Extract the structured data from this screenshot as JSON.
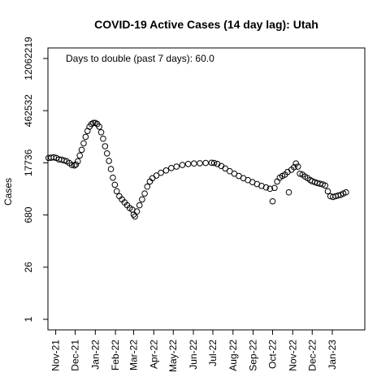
{
  "chart_data": {
    "type": "scatter",
    "title": "COVID-19 Active Cases (14 day lag): Utah",
    "ylabel": "Cases",
    "xlabel": "",
    "annotation": "Days to double (past 7 days): 60.0",
    "y_scale": "log",
    "ylim": [
      1,
      12062219
    ],
    "y_ticks": [
      {
        "value": 1,
        "label": "1"
      },
      {
        "value": 26,
        "label": "26"
      },
      {
        "value": 680,
        "label": "680"
      },
      {
        "value": 17736,
        "label": "17736"
      },
      {
        "value": 462532,
        "label": "462532"
      },
      {
        "value": 12062219,
        "label": "12062219"
      }
    ],
    "x_range": [
      "2021-10-20",
      "2023-02-20"
    ],
    "x_ticks": [
      {
        "date": "2021-11-01",
        "label": "Nov-21"
      },
      {
        "date": "2021-12-01",
        "label": "Dec-21"
      },
      {
        "date": "2022-01-01",
        "label": "Jan-22"
      },
      {
        "date": "2022-02-01",
        "label": "Feb-22"
      },
      {
        "date": "2022-03-01",
        "label": "Mar-22"
      },
      {
        "date": "2022-04-01",
        "label": "Apr-22"
      },
      {
        "date": "2022-05-01",
        "label": "May-22"
      },
      {
        "date": "2022-06-01",
        "label": "Jun-22"
      },
      {
        "date": "2022-07-01",
        "label": "Jul-22"
      },
      {
        "date": "2022-08-01",
        "label": "Aug-22"
      },
      {
        "date": "2022-09-01",
        "label": "Sep-22"
      },
      {
        "date": "2022-10-01",
        "label": "Oct-22"
      },
      {
        "date": "2022-11-01",
        "label": "Nov-22"
      },
      {
        "date": "2022-12-01",
        "label": "Dec-22"
      },
      {
        "date": "2023-01-01",
        "label": "Jan-23"
      }
    ],
    "series": [
      {
        "marker": "open-circle",
        "points": [
          [
            "2021-10-21",
            24000
          ],
          [
            "2021-10-25",
            24500
          ],
          [
            "2021-10-29",
            25000
          ],
          [
            "2021-11-02",
            24000
          ],
          [
            "2021-11-06",
            22000
          ],
          [
            "2021-11-10",
            21500
          ],
          [
            "2021-11-14",
            20500
          ],
          [
            "2021-11-18",
            19500
          ],
          [
            "2021-11-22",
            17500
          ],
          [
            "2021-11-26",
            15500
          ],
          [
            "2021-11-30",
            15000
          ],
          [
            "2021-12-02",
            16000
          ],
          [
            "2021-12-05",
            19500
          ],
          [
            "2021-12-08",
            28000
          ],
          [
            "2021-12-11",
            40000
          ],
          [
            "2021-12-14",
            60000
          ],
          [
            "2021-12-17",
            90000
          ],
          [
            "2021-12-20",
            130000
          ],
          [
            "2021-12-23",
            170000
          ],
          [
            "2021-12-26",
            200000
          ],
          [
            "2021-12-29",
            215000
          ],
          [
            "2022-01-01",
            215000
          ],
          [
            "2022-01-04",
            200000
          ],
          [
            "2022-01-07",
            170000
          ],
          [
            "2022-01-10",
            120000
          ],
          [
            "2022-01-13",
            80000
          ],
          [
            "2022-01-16",
            50000
          ],
          [
            "2022-01-19",
            32000
          ],
          [
            "2022-01-22",
            20000
          ],
          [
            "2022-01-25",
            12000
          ],
          [
            "2022-01-28",
            7000
          ],
          [
            "2022-01-31",
            4500
          ],
          [
            "2022-02-03",
            3000
          ],
          [
            "2022-02-07",
            2200
          ],
          [
            "2022-02-11",
            1800
          ],
          [
            "2022-02-15",
            1500
          ],
          [
            "2022-02-19",
            1250
          ],
          [
            "2022-02-23",
            1050
          ],
          [
            "2022-02-27",
            950
          ],
          [
            "2022-03-01",
            700
          ],
          [
            "2022-03-03",
            620
          ],
          [
            "2022-03-06",
            850
          ],
          [
            "2022-03-10",
            1250
          ],
          [
            "2022-03-14",
            1800
          ],
          [
            "2022-03-18",
            2600
          ],
          [
            "2022-03-22",
            4000
          ],
          [
            "2022-03-26",
            5500
          ],
          [
            "2022-03-30",
            6800
          ],
          [
            "2022-04-05",
            8000
          ],
          [
            "2022-04-12",
            9500
          ],
          [
            "2022-04-20",
            11000
          ],
          [
            "2022-04-28",
            12800
          ],
          [
            "2022-05-06",
            14000
          ],
          [
            "2022-05-15",
            15500
          ],
          [
            "2022-05-24",
            16500
          ],
          [
            "2022-06-02",
            17000
          ],
          [
            "2022-06-11",
            17300
          ],
          [
            "2022-06-20",
            17600
          ],
          [
            "2022-06-29",
            17800
          ],
          [
            "2022-07-03",
            17600
          ],
          [
            "2022-07-08",
            16500
          ],
          [
            "2022-07-14",
            14500
          ],
          [
            "2022-07-20",
            12500
          ],
          [
            "2022-07-27",
            10500
          ],
          [
            "2022-08-03",
            9000
          ],
          [
            "2022-08-10",
            7800
          ],
          [
            "2022-08-17",
            6800
          ],
          [
            "2022-08-24",
            6000
          ],
          [
            "2022-08-31",
            5300
          ],
          [
            "2022-09-07",
            4700
          ],
          [
            "2022-09-14",
            4200
          ],
          [
            "2022-09-21",
            3800
          ],
          [
            "2022-09-27",
            3500
          ],
          [
            "2022-10-01",
            1600
          ],
          [
            "2022-10-04",
            3700
          ],
          [
            "2022-10-08",
            5500
          ],
          [
            "2022-10-12",
            7000
          ],
          [
            "2022-10-16",
            7800
          ],
          [
            "2022-10-20",
            8500
          ],
          [
            "2022-10-24",
            10000
          ],
          [
            "2022-10-26",
            2800
          ],
          [
            "2022-10-30",
            11500
          ],
          [
            "2022-11-03",
            13500
          ],
          [
            "2022-11-06",
            17000
          ],
          [
            "2022-11-09",
            14000
          ],
          [
            "2022-11-12",
            9000
          ],
          [
            "2022-11-16",
            8500
          ],
          [
            "2022-11-20",
            7500
          ],
          [
            "2022-11-24",
            6800
          ],
          [
            "2022-11-28",
            6000
          ],
          [
            "2022-12-01",
            5600
          ],
          [
            "2022-12-05",
            5300
          ],
          [
            "2022-12-09",
            5000
          ],
          [
            "2022-12-13",
            4800
          ],
          [
            "2022-12-17",
            4600
          ],
          [
            "2022-12-21",
            4300
          ],
          [
            "2022-12-25",
            3000
          ],
          [
            "2022-12-29",
            2200
          ],
          [
            "2023-01-02",
            2100
          ],
          [
            "2023-01-06",
            2200
          ],
          [
            "2023-01-10",
            2300
          ],
          [
            "2023-01-14",
            2400
          ],
          [
            "2023-01-18",
            2600
          ],
          [
            "2023-01-22",
            2800
          ]
        ]
      }
    ]
  }
}
